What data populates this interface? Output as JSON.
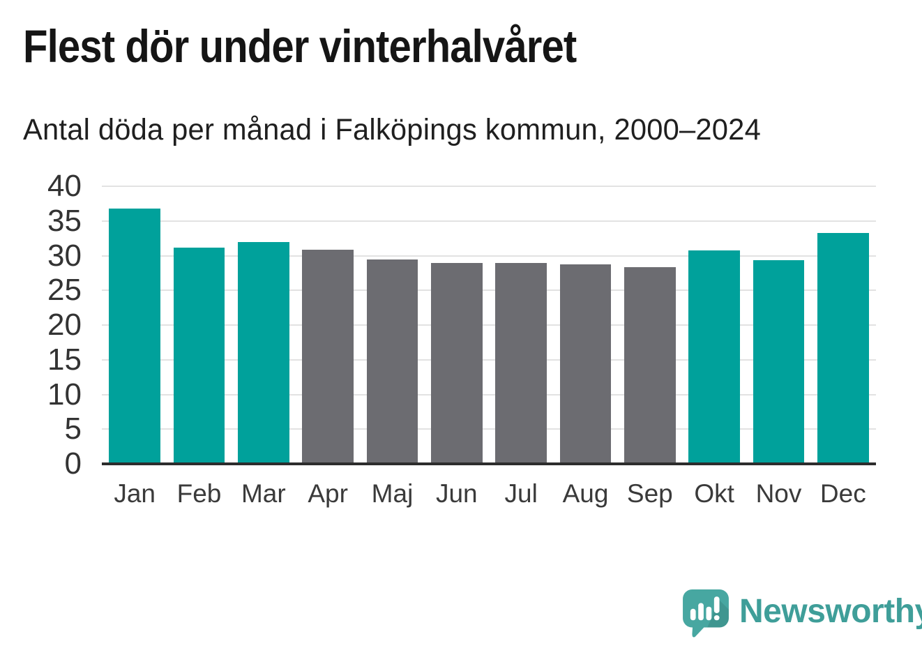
{
  "title": "Flest dör under vinterhalvåret",
  "subtitle": "Antal döda per månad i Falköpings kommun, 2000–2024",
  "chart_data": {
    "type": "bar",
    "title": "Flest dör under vinterhalvåret",
    "subtitle": "Antal döda per månad i Falköpings kommun, 2000–2024",
    "categories": [
      "Jan",
      "Feb",
      "Mar",
      "Apr",
      "Maj",
      "Jun",
      "Jul",
      "Aug",
      "Sep",
      "Okt",
      "Nov",
      "Dec"
    ],
    "values": [
      36.8,
      31.2,
      32.0,
      30.9,
      29.4,
      28.9,
      28.9,
      28.7,
      28.3,
      30.8,
      29.3,
      33.3
    ],
    "highlighted": [
      true,
      true,
      true,
      false,
      false,
      false,
      false,
      false,
      false,
      true,
      true,
      true
    ],
    "xlabel": "",
    "ylabel": "",
    "ylim": [
      0,
      40
    ],
    "yticks": [
      0,
      5,
      10,
      15,
      20,
      25,
      30,
      35,
      40
    ],
    "grid": "horizontal",
    "legend": "none",
    "colors": {
      "highlight_bar": "#00a19b",
      "base_bar": "#6c6c71",
      "gridline": "#e2e2e2",
      "axis_line": "#2d2d2d",
      "tick_label": "#333333"
    }
  },
  "logo": {
    "text": "Newsworthy",
    "icon": "newsworthy-speech-bubble-bar-chart-icon",
    "text_color": "#3f9e99",
    "icon_color": "#47a7a1"
  }
}
